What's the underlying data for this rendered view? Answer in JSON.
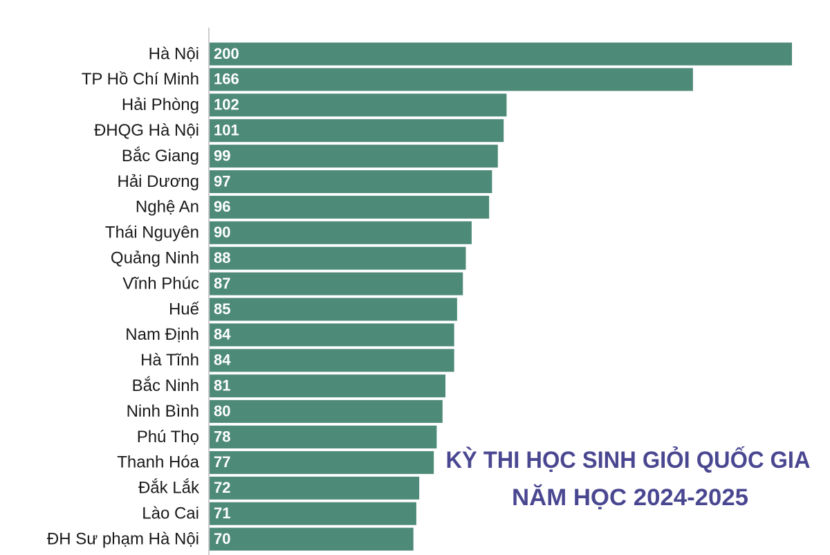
{
  "chart_data": {
    "type": "bar",
    "orientation": "horizontal",
    "title_lines": [
      "KỲ THI HỌC SINH GIỎI QUỐC GIA",
      "NĂM HỌC 2024-2025"
    ],
    "categories": [
      "Hà Nội",
      "TP Hồ Chí Minh",
      "Hải Phòng",
      "ĐHQG Hà Nội",
      "Bắc Giang",
      "Hải Dương",
      "Nghệ An",
      "Thái Nguyên",
      "Quảng Ninh",
      "Vĩnh Phúc",
      "Huế",
      "Nam Định",
      "Hà Tĩnh",
      "Bắc Ninh",
      "Ninh Bình",
      "Phú Thọ",
      "Thanh Hóa",
      "Đắk Lắk",
      "Lào Cai",
      "ĐH Sư phạm Hà Nội"
    ],
    "values": [
      200,
      166,
      102,
      101,
      99,
      97,
      96,
      90,
      88,
      87,
      85,
      84,
      84,
      81,
      80,
      78,
      77,
      72,
      71,
      70
    ],
    "color": "#4e8a78",
    "xlim": [
      0,
      200
    ]
  }
}
